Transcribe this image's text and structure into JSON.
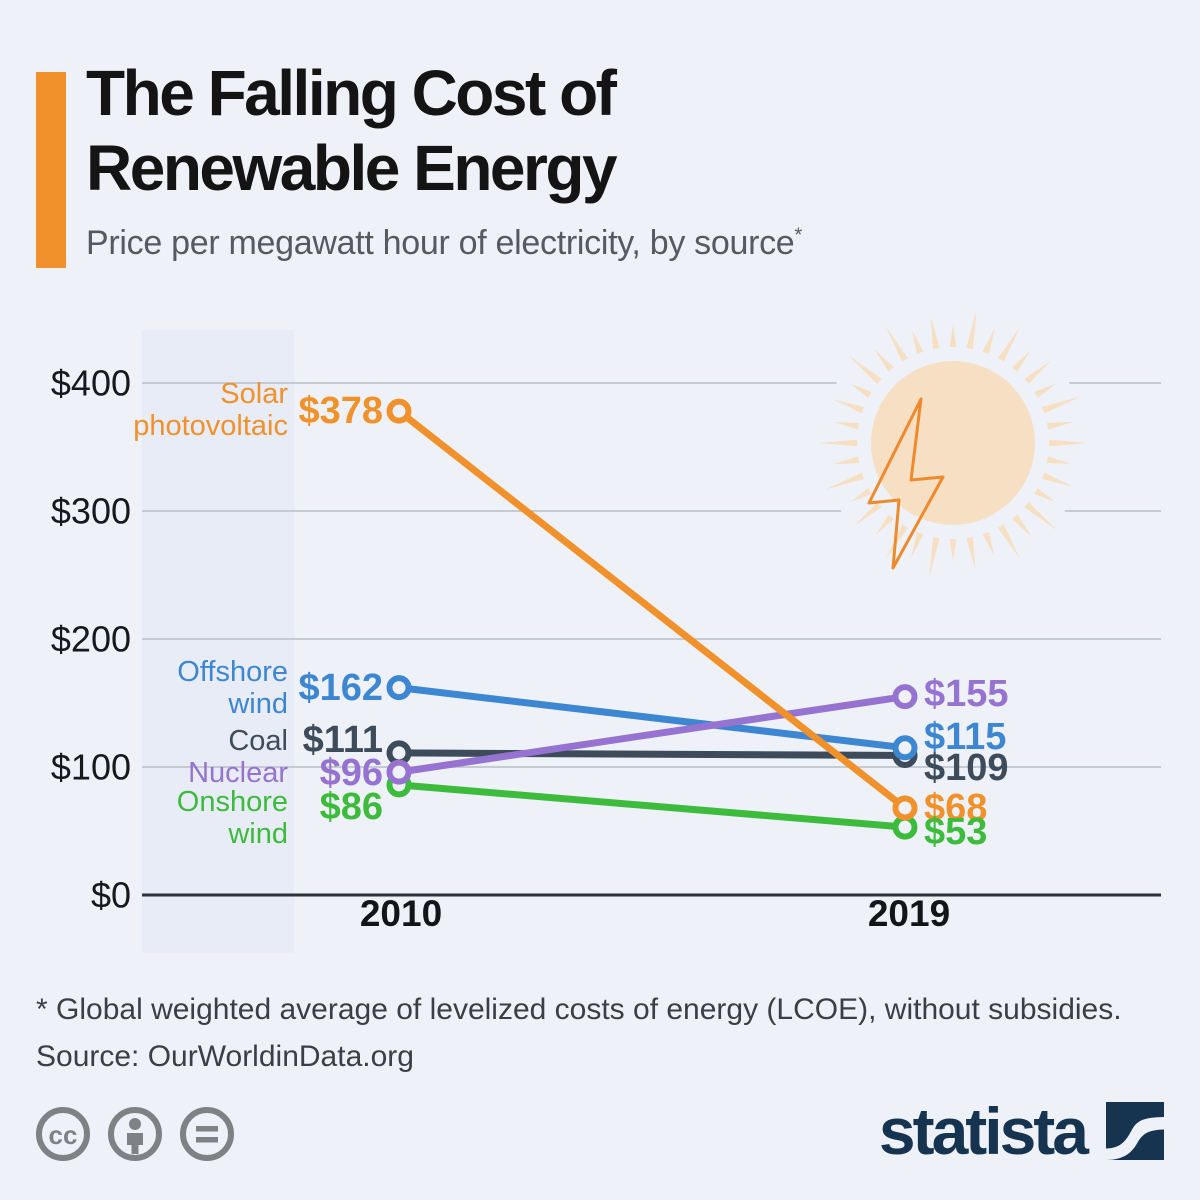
{
  "header": {
    "title_line1": "The Falling Cost of",
    "title_line2": "Renewable Energy",
    "subtitle": "Price per megawatt hour of electricity, by source",
    "note_mark": "*"
  },
  "chart_data": {
    "type": "line",
    "subtype": "slope",
    "title": "The Falling Cost of Renewable Energy",
    "xlabel": "",
    "ylabel": "Price per megawatt hour of electricity (USD)",
    "categories": [
      "2010",
      "2019"
    ],
    "ylim": [
      0,
      440
    ],
    "grid": true,
    "yticks": [
      {
        "value": 400,
        "label": "$400"
      },
      {
        "value": 300,
        "label": "$300"
      },
      {
        "value": 200,
        "label": "$200"
      },
      {
        "value": 100,
        "label": "$100"
      },
      {
        "value": 0,
        "label": "$0"
      }
    ],
    "series": [
      {
        "name": "Solar photovoltaic",
        "label_lines": [
          "Solar",
          "photovoltaic"
        ],
        "color": "#f0912c",
        "values": [
          378,
          68
        ],
        "value_labels": [
          "$378",
          "$68"
        ]
      },
      {
        "name": "Offshore wind",
        "label_lines": [
          "Offshore",
          "wind"
        ],
        "color": "#3d87d2",
        "values": [
          162,
          115
        ],
        "value_labels": [
          "$162",
          "$115"
        ]
      },
      {
        "name": "Coal",
        "label_lines": [
          "Coal"
        ],
        "color": "#3d4b5b",
        "values": [
          111,
          109
        ],
        "value_labels": [
          "$111",
          "$109"
        ]
      },
      {
        "name": "Nuclear",
        "label_lines": [
          "Nuclear"
        ],
        "color": "#9673d0",
        "values": [
          96,
          155
        ],
        "value_labels": [
          "$96",
          "$155"
        ]
      },
      {
        "name": "Onshore wind",
        "label_lines": [
          "Onshore",
          "wind"
        ],
        "color": "#3cbb3c",
        "values": [
          86,
          53
        ],
        "value_labels": [
          "$86",
          "$53"
        ]
      }
    ]
  },
  "footer": {
    "footnote": "* Global weighted average of levelized costs of energy (LCOE), without subsidies.",
    "source": "Source: OurWorldinData.org"
  },
  "branding": {
    "logo_text": "statista",
    "license_icons": "cc by nd"
  },
  "colors": {
    "accent_orange": "#f0912c",
    "background": "#eef2f8",
    "band": "#e8ecf6",
    "gridline": "#b8bdc6",
    "axis": "#2e3338",
    "sun_fill": "#f6dfc3",
    "bolt_stroke": "#ee8a2c",
    "license_gray": "#7e8285",
    "brand_navy": "#16344f"
  }
}
